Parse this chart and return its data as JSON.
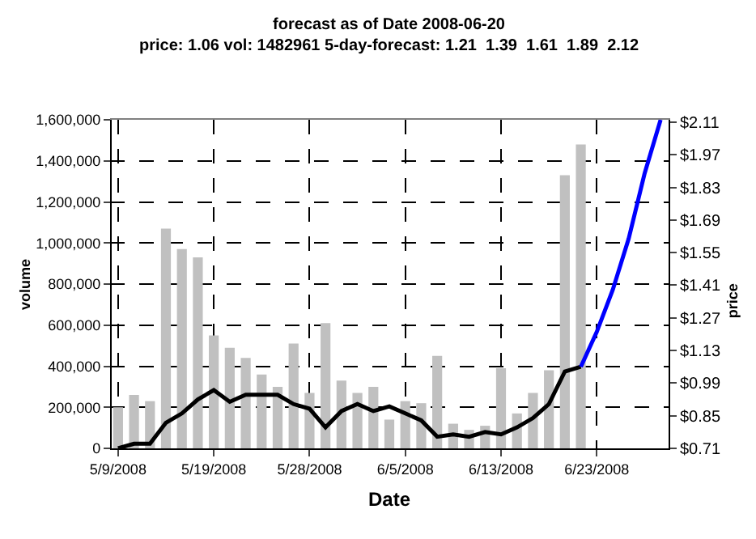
{
  "chart_data": {
    "type": "bar",
    "title": "forecast as of Date 2008-06-20",
    "subtitle": "price: 1.06 vol: 1482961 5-day-forecast: 1.21  1.39  1.61  1.89  2.12",
    "xlabel": "Date",
    "ylabel": "volume",
    "y2label": "price",
    "categories": [
      "5/9/2008",
      null,
      null,
      null,
      null,
      null,
      "5/19/2008",
      null,
      null,
      null,
      null,
      null,
      "5/28/2008",
      null,
      null,
      null,
      null,
      null,
      "6/5/2008",
      null,
      null,
      null,
      null,
      null,
      "6/13/2008",
      null,
      null,
      null,
      null,
      null,
      "6/23/2008",
      null,
      null,
      null,
      null
    ],
    "series": [
      {
        "color": "#c0c0c0",
        "values": [
          200000,
          260000,
          230000,
          1070000,
          970000,
          930000,
          550000,
          490000,
          440000,
          360000,
          300000,
          510000,
          270000,
          610000,
          330000,
          270000,
          300000,
          140000,
          230000,
          220000,
          450000,
          120000,
          90000,
          110000,
          390000,
          170000,
          270000,
          380000,
          1330000,
          1480000,
          null,
          null,
          null,
          null,
          null
        ]
      },
      {
        "type": "line",
        "axis": "y2",
        "color": "#000000",
        "values": [
          0.71,
          0.73,
          0.73,
          0.82,
          0.86,
          0.92,
          0.96,
          0.91,
          0.94,
          0.94,
          0.94,
          0.9,
          0.88,
          0.8,
          0.87,
          0.9,
          0.87,
          0.89,
          0.86,
          0.83,
          0.76,
          0.77,
          0.76,
          0.78,
          0.77,
          0.8,
          0.84,
          0.9,
          1.04,
          1.06,
          null,
          null,
          null,
          null,
          null
        ]
      },
      {
        "type": "line",
        "axis": "y2",
        "color": "#0000ff",
        "values": [
          null,
          null,
          null,
          null,
          null,
          null,
          null,
          null,
          null,
          null,
          null,
          null,
          null,
          null,
          null,
          null,
          null,
          null,
          null,
          null,
          null,
          null,
          null,
          null,
          null,
          null,
          null,
          null,
          null,
          1.06,
          1.21,
          1.39,
          1.61,
          1.89,
          2.12
        ]
      }
    ],
    "ylim": [
      0,
      1600000
    ],
    "yticks": [
      {
        "value": 0,
        "label": "0"
      },
      {
        "value": 200000,
        "label": "200,000"
      },
      {
        "value": 400000,
        "label": "400,000"
      },
      {
        "value": 600000,
        "label": "600,000"
      },
      {
        "value": 800000,
        "label": "800,000"
      },
      {
        "value": 1000000,
        "label": "1,000,000"
      },
      {
        "value": 1200000,
        "label": "1,200,000"
      },
      {
        "value": 1400000,
        "label": "1,400,000"
      },
      {
        "value": 1600000,
        "label": "1,600,000"
      }
    ],
    "y2lim": [
      0.71,
      2.12
    ],
    "y2ticks": [
      {
        "value": 0.71,
        "label": "$0.71"
      },
      {
        "value": 0.85,
        "label": "$0.85"
      },
      {
        "value": 0.99,
        "label": "$0.99"
      },
      {
        "value": 1.13,
        "label": "$1.13"
      },
      {
        "value": 1.27,
        "label": "$1.27"
      },
      {
        "value": 1.41,
        "label": "$1.41"
      },
      {
        "value": 1.55,
        "label": "$1.55"
      },
      {
        "value": 1.69,
        "label": "$1.69"
      },
      {
        "value": 1.83,
        "label": "$1.83"
      },
      {
        "value": 1.97,
        "label": "$1.97"
      },
      {
        "value": 2.11,
        "label": "$2.11"
      }
    ],
    "grid": true,
    "line_style": "solid",
    "marker": "none"
  }
}
